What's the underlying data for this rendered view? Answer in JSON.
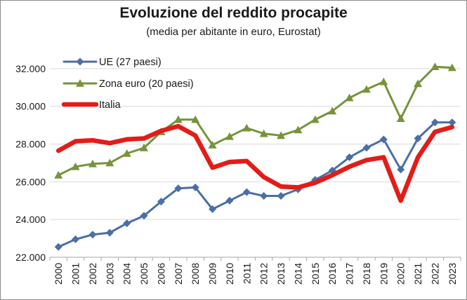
{
  "chart_data": {
    "type": "line",
    "title": "Evoluzione del reddito procapite",
    "subtitle": "(media per abitante in euro, Eurostat)",
    "xlabel": "",
    "ylabel": "",
    "ylim": [
      22000,
      33000
    ],
    "yticks": [
      22000,
      24000,
      26000,
      28000,
      30000,
      32000
    ],
    "ytick_labels": [
      "22.000",
      "24.000",
      "26.000",
      "28.000",
      "30.000",
      "32.000"
    ],
    "grid": "horizontal",
    "legend_position": "top-left",
    "x": [
      "2000",
      "2001",
      "2002",
      "2003",
      "2004",
      "2005",
      "2006",
      "2007",
      "2008",
      "2009",
      "2010",
      "2011",
      "2012",
      "2013",
      "2014",
      "2015",
      "2016",
      "2017",
      "2018",
      "2019",
      "2020",
      "2021",
      "2022",
      "2023"
    ],
    "series": [
      {
        "name": "UE (27 paesi)",
        "color": "#4a6fa5",
        "marker": "diamond",
        "values": [
          22550,
          22950,
          23200,
          23300,
          23800,
          24200,
          24950,
          25650,
          25700,
          24550,
          25000,
          25450,
          25250,
          25250,
          25600,
          26100,
          26600,
          27300,
          27800,
          28250,
          26650,
          28300,
          29150,
          29150
        ]
      },
      {
        "name": "Zona euro (20 paesi)",
        "color": "#77933c",
        "marker": "triangle",
        "values": [
          26350,
          26800,
          26950,
          27000,
          27500,
          27800,
          28650,
          29300,
          29300,
          27950,
          28400,
          28850,
          28550,
          28450,
          28750,
          29300,
          29750,
          30450,
          30900,
          31300,
          29350,
          31200,
          32100,
          32050
        ]
      },
      {
        "name": "Italia",
        "color": "#e31c18",
        "marker": "none",
        "values": [
          27650,
          28150,
          28200,
          28050,
          28250,
          28300,
          28700,
          28950,
          28450,
          26750,
          27050,
          27100,
          26250,
          25750,
          25700,
          25950,
          26350,
          26800,
          27150,
          27300,
          25000,
          27300,
          28650,
          28900
        ]
      }
    ]
  }
}
